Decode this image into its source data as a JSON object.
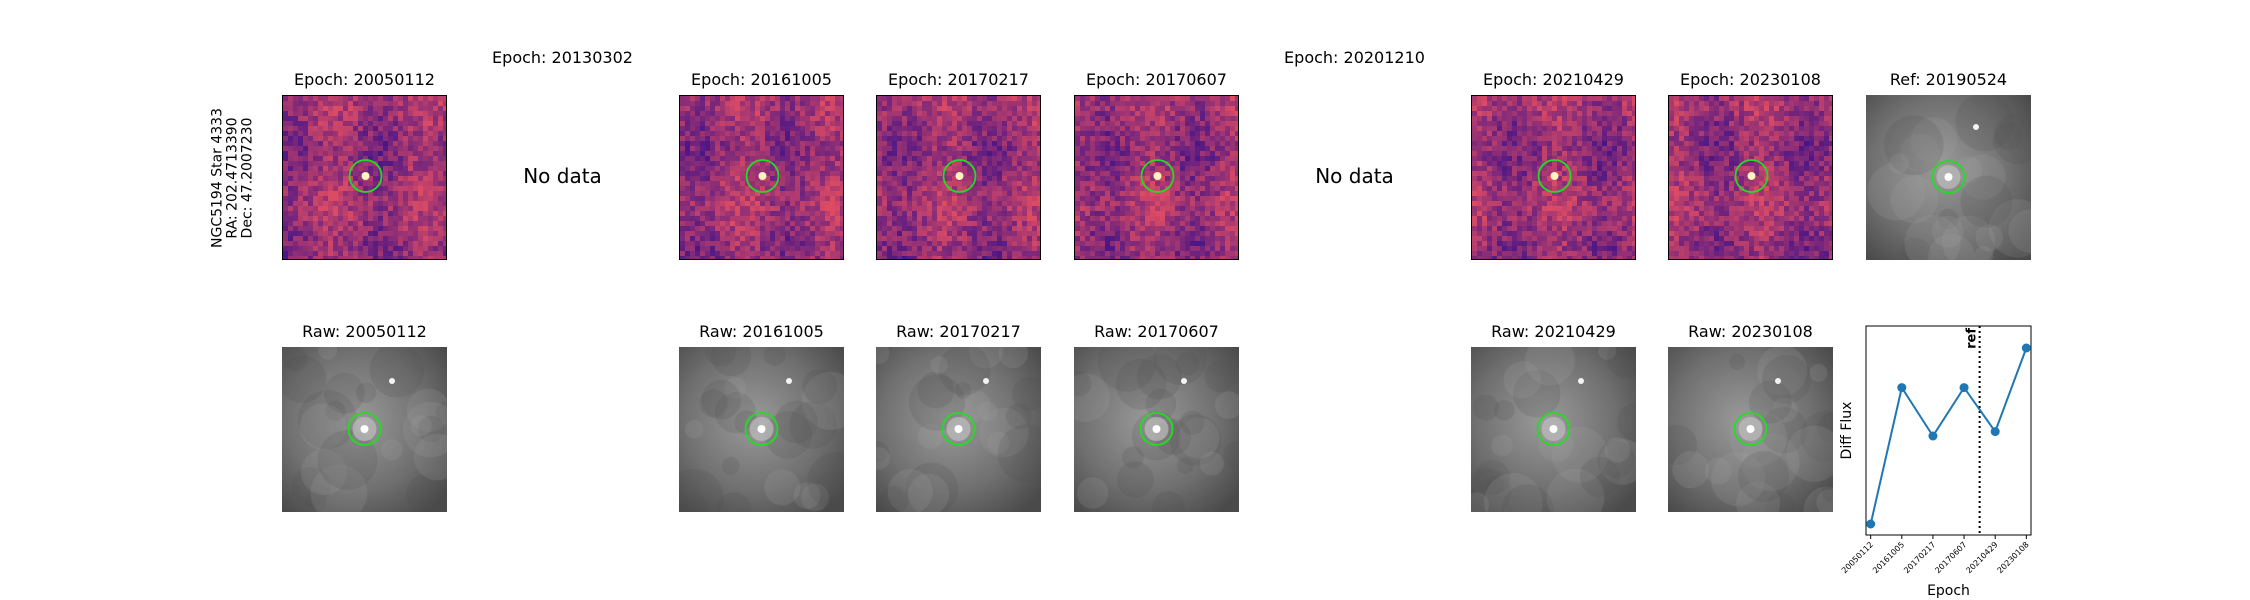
{
  "object": {
    "name": "NGC5194 Star 4333",
    "ra_label": "RA: 202.4713390",
    "dec_label": "Dec: 47.2007230"
  },
  "diff_row": [
    {
      "title": "Epoch: 20050112",
      "has_data": true
    },
    {
      "title": "Epoch: 20130302",
      "has_data": false,
      "nodata_label": "No data"
    },
    {
      "title": "Epoch: 20161005",
      "has_data": true
    },
    {
      "title": "Epoch: 20170217",
      "has_data": true
    },
    {
      "title": "Epoch: 20170607",
      "has_data": true
    },
    {
      "title": "Epoch: 20201210",
      "has_data": false,
      "nodata_label": "No data"
    },
    {
      "title": "Epoch: 20210429",
      "has_data": true
    },
    {
      "title": "Epoch: 20230108",
      "has_data": true
    }
  ],
  "ref": {
    "title": "Ref: 20190524"
  },
  "raw_row": [
    {
      "title": "Raw: 20050112",
      "has_data": true
    },
    {
      "title": "",
      "has_data": false
    },
    {
      "title": "Raw: 20161005",
      "has_data": true
    },
    {
      "title": "Raw: 20170217",
      "has_data": true
    },
    {
      "title": "Raw: 20170607",
      "has_data": true
    },
    {
      "title": "",
      "has_data": false
    },
    {
      "title": "Raw: 20210429",
      "has_data": true
    },
    {
      "title": "Raw: 20230108",
      "has_data": true
    }
  ],
  "colors": {
    "circle": "#22dd22",
    "series": "#1f77b4",
    "diff_base": "#8a3a7c"
  },
  "chart_data": {
    "type": "line",
    "x": [
      "20050112",
      "20161005",
      "20170217",
      "20170607",
      "20210429",
      "20230108"
    ],
    "values": [
      0.0,
      0.62,
      0.4,
      0.62,
      0.42,
      0.8
    ],
    "xlabel": "Epoch",
    "ylabel": "Diff Flux",
    "ylim": [
      -0.05,
      0.9
    ],
    "ref_line": {
      "position_index": 3.5,
      "label": "ref"
    },
    "grid": false
  }
}
